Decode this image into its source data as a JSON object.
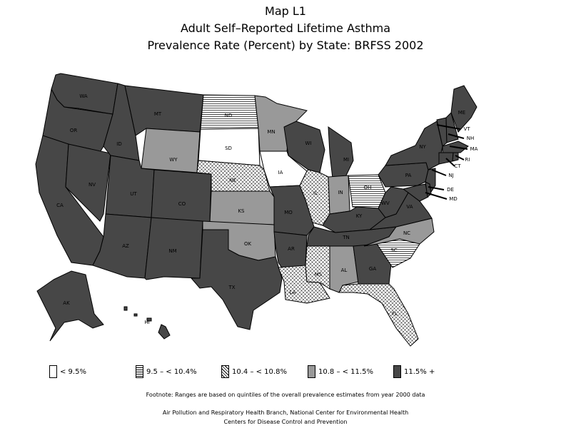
{
  "title": {
    "line1": "Map L1",
    "line2": "Adult Self–Reported Lifetime Asthma",
    "line3": "Prevalence Rate (Percent) by State: BRFSS 2002"
  },
  "legend": [
    {
      "label": "< 9.5%",
      "fill": "white"
    },
    {
      "label": "9.5 – < 10.4%",
      "fill": "hlines"
    },
    {
      "label": "10.4 – < 10.8%",
      "fill": "cross"
    },
    {
      "label": "10.8 – < 11.5%",
      "fill": "gray"
    },
    {
      "label": "11.5% +",
      "fill": "dark"
    }
  ],
  "colors": {
    "dark": "#474747",
    "gray": "#999999",
    "white": "#ffffff",
    "outline": "#000000"
  },
  "states": {
    "WA": "WA",
    "OR": "OR",
    "CA": "CA",
    "NV": "NV",
    "ID": "ID",
    "MT": "MT",
    "WY": "WY",
    "UT": "UT",
    "AZ": "AZ",
    "CO": "CO",
    "NM": "NM",
    "ND": "ND",
    "SD": "SD",
    "NE": "NE",
    "KS": "KS",
    "OK": "OK",
    "TX": "TX",
    "MN": "MN",
    "IA": "IA",
    "MO": "MO",
    "AR": "AR",
    "LA": "LA",
    "WI": "WI",
    "IL": "IL",
    "MS": "MS",
    "MI": "MI",
    "IN": "IN",
    "KY": "KY",
    "TN": "TN",
    "AL": "AL",
    "GA": "GA",
    "FL": "FL",
    "OH": "OH",
    "WV": "WV",
    "VA": "VA",
    "NC": "NC",
    "SC": "SC",
    "PA": "PA",
    "NY": "NY",
    "ME": "ME",
    "VT": "VT",
    "NH": "NH",
    "MA": "MA",
    "RI": "RI",
    "CT": "CT",
    "NJ": "NJ",
    "DE": "DE",
    "MD": "MD",
    "AK": "AK",
    "HI": "HI"
  },
  "footnote": "Footnote: Ranges are based on quintiles of the overall prevalence estimates from year 2000 data",
  "credit1": "Air Pollution and Respiratory Health Branch, National Center for Environmental Health",
  "credit2": "Centers for Disease Control and Prevention"
}
